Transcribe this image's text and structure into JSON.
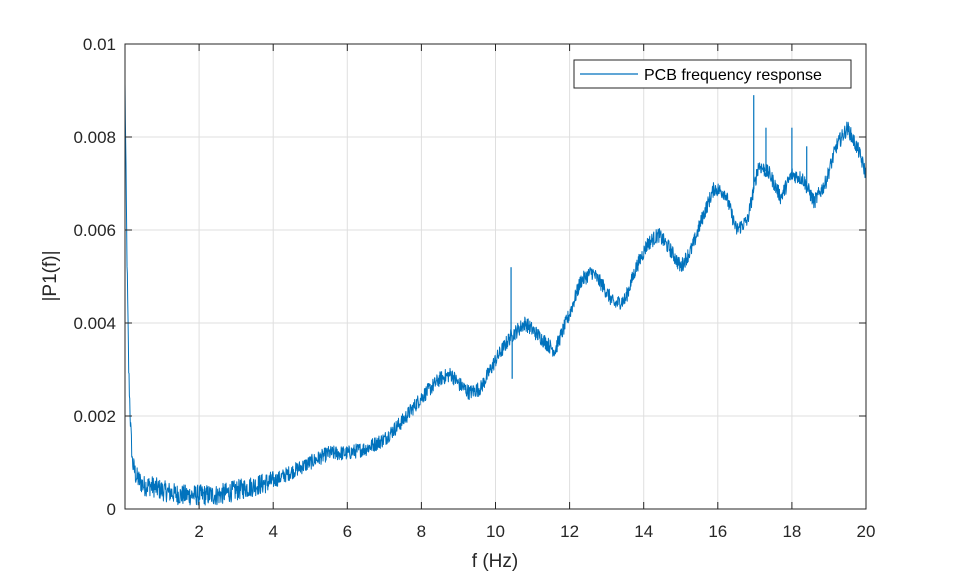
{
  "chart_data": {
    "type": "line",
    "title": "",
    "xlabel": "f (Hz)",
    "ylabel": "|P1(f)|",
    "xlim": [
      0,
      20
    ],
    "ylim": [
      0,
      0.01
    ],
    "x_ticks": [
      2,
      4,
      6,
      8,
      10,
      12,
      14,
      16,
      18,
      20
    ],
    "y_ticks": [
      0,
      0.002,
      0.004,
      0.006,
      0.008,
      0.01
    ],
    "x_tick_labels": [
      "2",
      "4",
      "6",
      "8",
      "10",
      "12",
      "14",
      "16",
      "18",
      "20"
    ],
    "y_tick_labels": [
      "0",
      "0.002",
      "0.004",
      "0.006",
      "0.008",
      "0.01"
    ],
    "grid": true,
    "legend_position": "top-right",
    "series": [
      {
        "name": "PCB frequency response",
        "color": "#0072bd",
        "x": [
          0,
          0.05,
          0.1,
          0.15,
          0.2,
          0.3,
          0.4,
          0.5,
          0.7,
          1.0,
          1.5,
          2.0,
          2.5,
          3.0,
          3.5,
          4.0,
          4.5,
          5.0,
          5.5,
          6.0,
          6.5,
          7.0,
          7.5,
          8.0,
          8.5,
          8.8,
          9.0,
          9.3,
          9.6,
          10.0,
          10.4,
          10.8,
          11.2,
          11.6,
          12.0,
          12.3,
          12.6,
          12.9,
          13.2,
          13.5,
          13.8,
          14.1,
          14.4,
          14.7,
          15.0,
          15.3,
          15.6,
          15.9,
          16.2,
          16.5,
          16.8,
          17.1,
          17.4,
          17.7,
          18.0,
          18.3,
          18.6,
          18.9,
          19.2,
          19.5,
          19.8,
          20.0
        ],
        "y": [
          0.0091,
          0.0056,
          0.003,
          0.0018,
          0.001,
          0.0007,
          0.0006,
          0.0005,
          0.0005,
          0.0004,
          0.0003,
          0.0003,
          0.0003,
          0.0004,
          0.0005,
          0.0006,
          0.0008,
          0.001,
          0.0012,
          0.0012,
          0.0013,
          0.0015,
          0.0019,
          0.0024,
          0.0028,
          0.0029,
          0.0027,
          0.0025,
          0.0026,
          0.0032,
          0.0037,
          0.004,
          0.0037,
          0.0034,
          0.0042,
          0.0049,
          0.0051,
          0.0048,
          0.0044,
          0.0045,
          0.0052,
          0.0057,
          0.0059,
          0.0056,
          0.0052,
          0.0056,
          0.0063,
          0.0069,
          0.0068,
          0.006,
          0.0062,
          0.0074,
          0.0072,
          0.0067,
          0.0072,
          0.0071,
          0.0066,
          0.007,
          0.0078,
          0.0082,
          0.0077,
          0.0072
        ]
      }
    ],
    "spikes": [
      {
        "x": 10.42,
        "y": 0.0052
      },
      {
        "x": 10.45,
        "y": 0.0028
      },
      {
        "x": 16.97,
        "y": 0.0089
      },
      {
        "x": 17.3,
        "y": 0.0082
      },
      {
        "x": 18.0,
        "y": 0.0082
      },
      {
        "x": 18.4,
        "y": 0.0078
      },
      {
        "x": 19.3,
        "y": 0.0081
      }
    ]
  }
}
